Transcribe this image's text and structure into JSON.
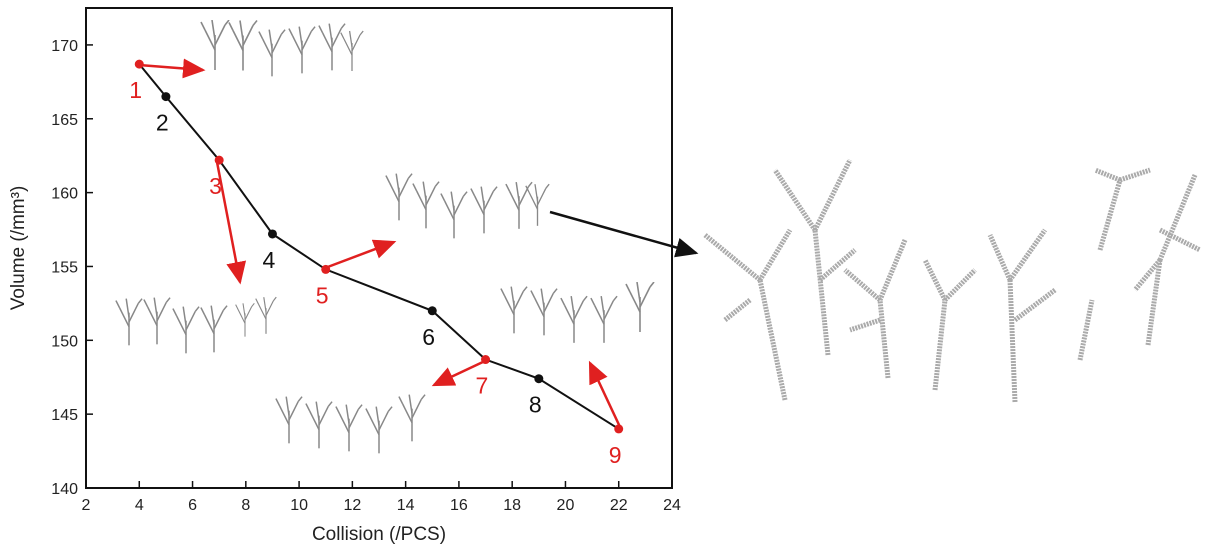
{
  "chart_data": {
    "type": "line",
    "x_label": "Collision (/PCS)",
    "y_label": "Volume (/mm³)",
    "x": [
      4,
      5,
      7,
      9,
      11,
      15,
      17,
      19,
      22
    ],
    "values": [
      168.7,
      166.5,
      162.2,
      157.2,
      154.8,
      152.0,
      148.7,
      147.4,
      144.0
    ],
    "point_labels": [
      "1",
      "2",
      "3",
      "4",
      "5",
      "6",
      "7",
      "8",
      "9"
    ],
    "point_colors": [
      "#e02020",
      "#111111",
      "#e02020",
      "#111111",
      "#e02020",
      "#111111",
      "#e02020",
      "#111111",
      "#e02020"
    ],
    "color": "#111111",
    "xlim": [
      2,
      24
    ],
    "xticks": [
      2,
      4,
      6,
      8,
      10,
      12,
      14,
      16,
      18,
      20,
      22,
      24
    ],
    "ylim": [
      140,
      172.5
    ],
    "yticks": [
      140,
      145,
      150,
      155,
      160,
      165,
      170
    ]
  }
}
